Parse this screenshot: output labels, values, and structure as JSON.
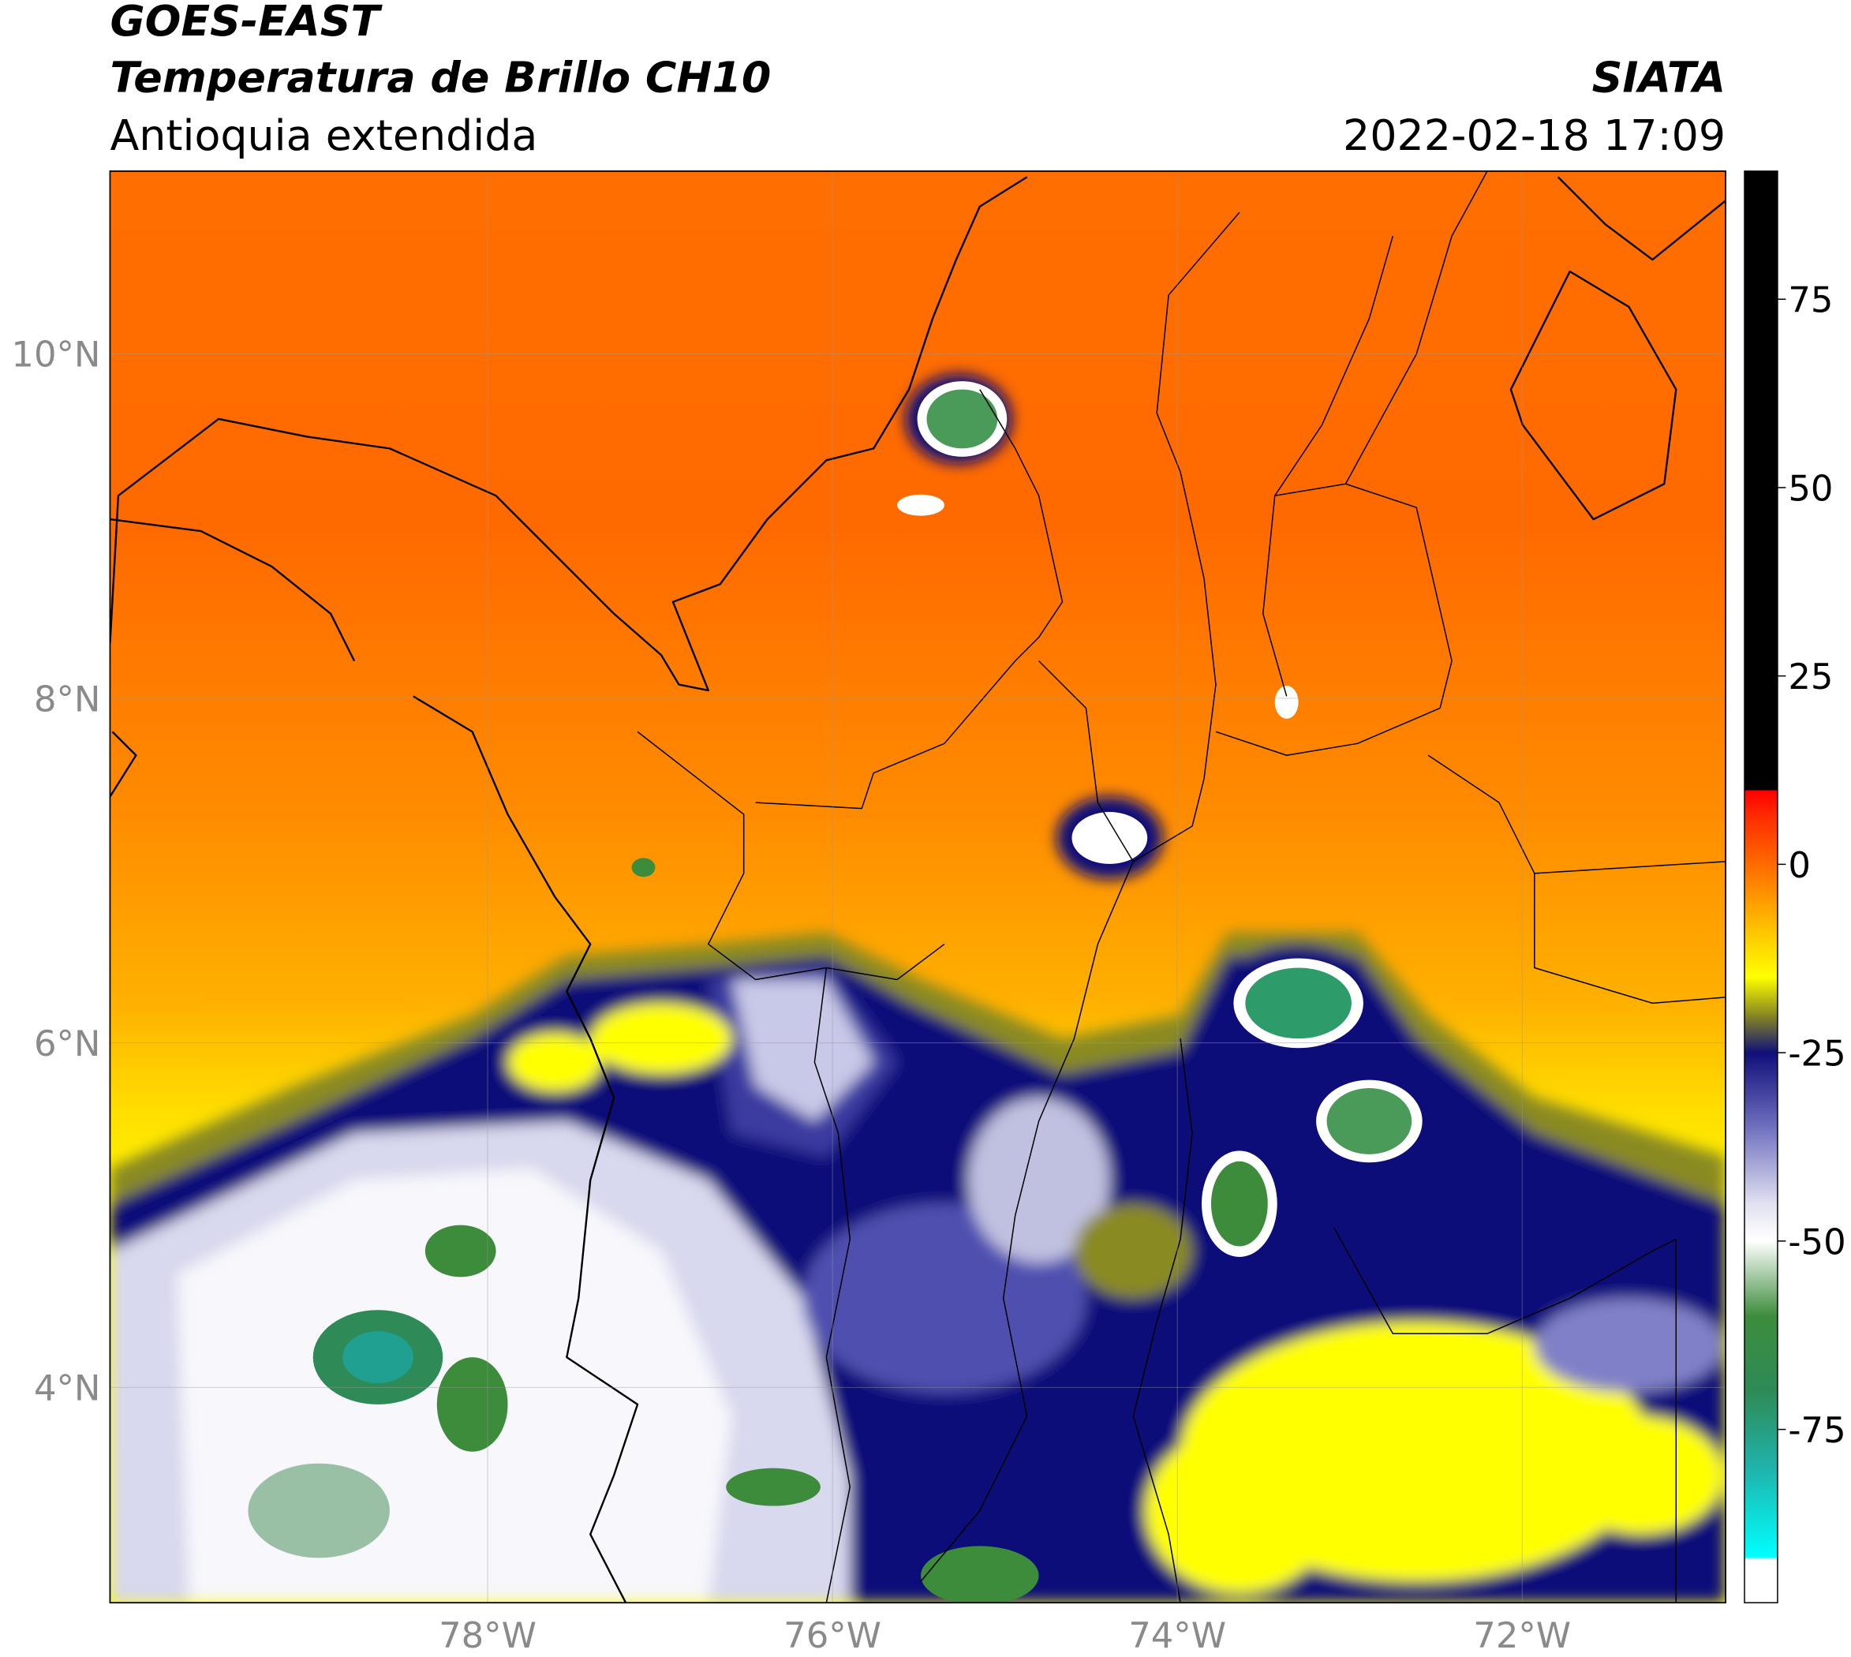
{
  "header": {
    "title": "GOES-EAST",
    "subtitle": "Temperatura de Brillo CH10",
    "region": "Antioquia extendida",
    "source": "SIATA",
    "datetime": "2022-02-18 17:09"
  },
  "map": {
    "xlim": [
      -80.19,
      -70.82
    ],
    "ylim": [
      2.75,
      11.06
    ],
    "xticks": [
      {
        "value": -78,
        "label": "78°W"
      },
      {
        "value": -76,
        "label": "76°W"
      },
      {
        "value": -74,
        "label": "74°W"
      },
      {
        "value": -72,
        "label": "72°W"
      }
    ],
    "yticks": [
      {
        "value": 4,
        "label": "4°N"
      },
      {
        "value": 6,
        "label": "6°N"
      },
      {
        "value": 8,
        "label": "8°N"
      },
      {
        "value": 10,
        "label": "10°N"
      }
    ]
  },
  "colorbar": {
    "lim": [
      -98,
      92
    ],
    "ticks": [
      -75,
      -50,
      -25,
      0,
      25,
      50,
      75
    ]
  }
}
